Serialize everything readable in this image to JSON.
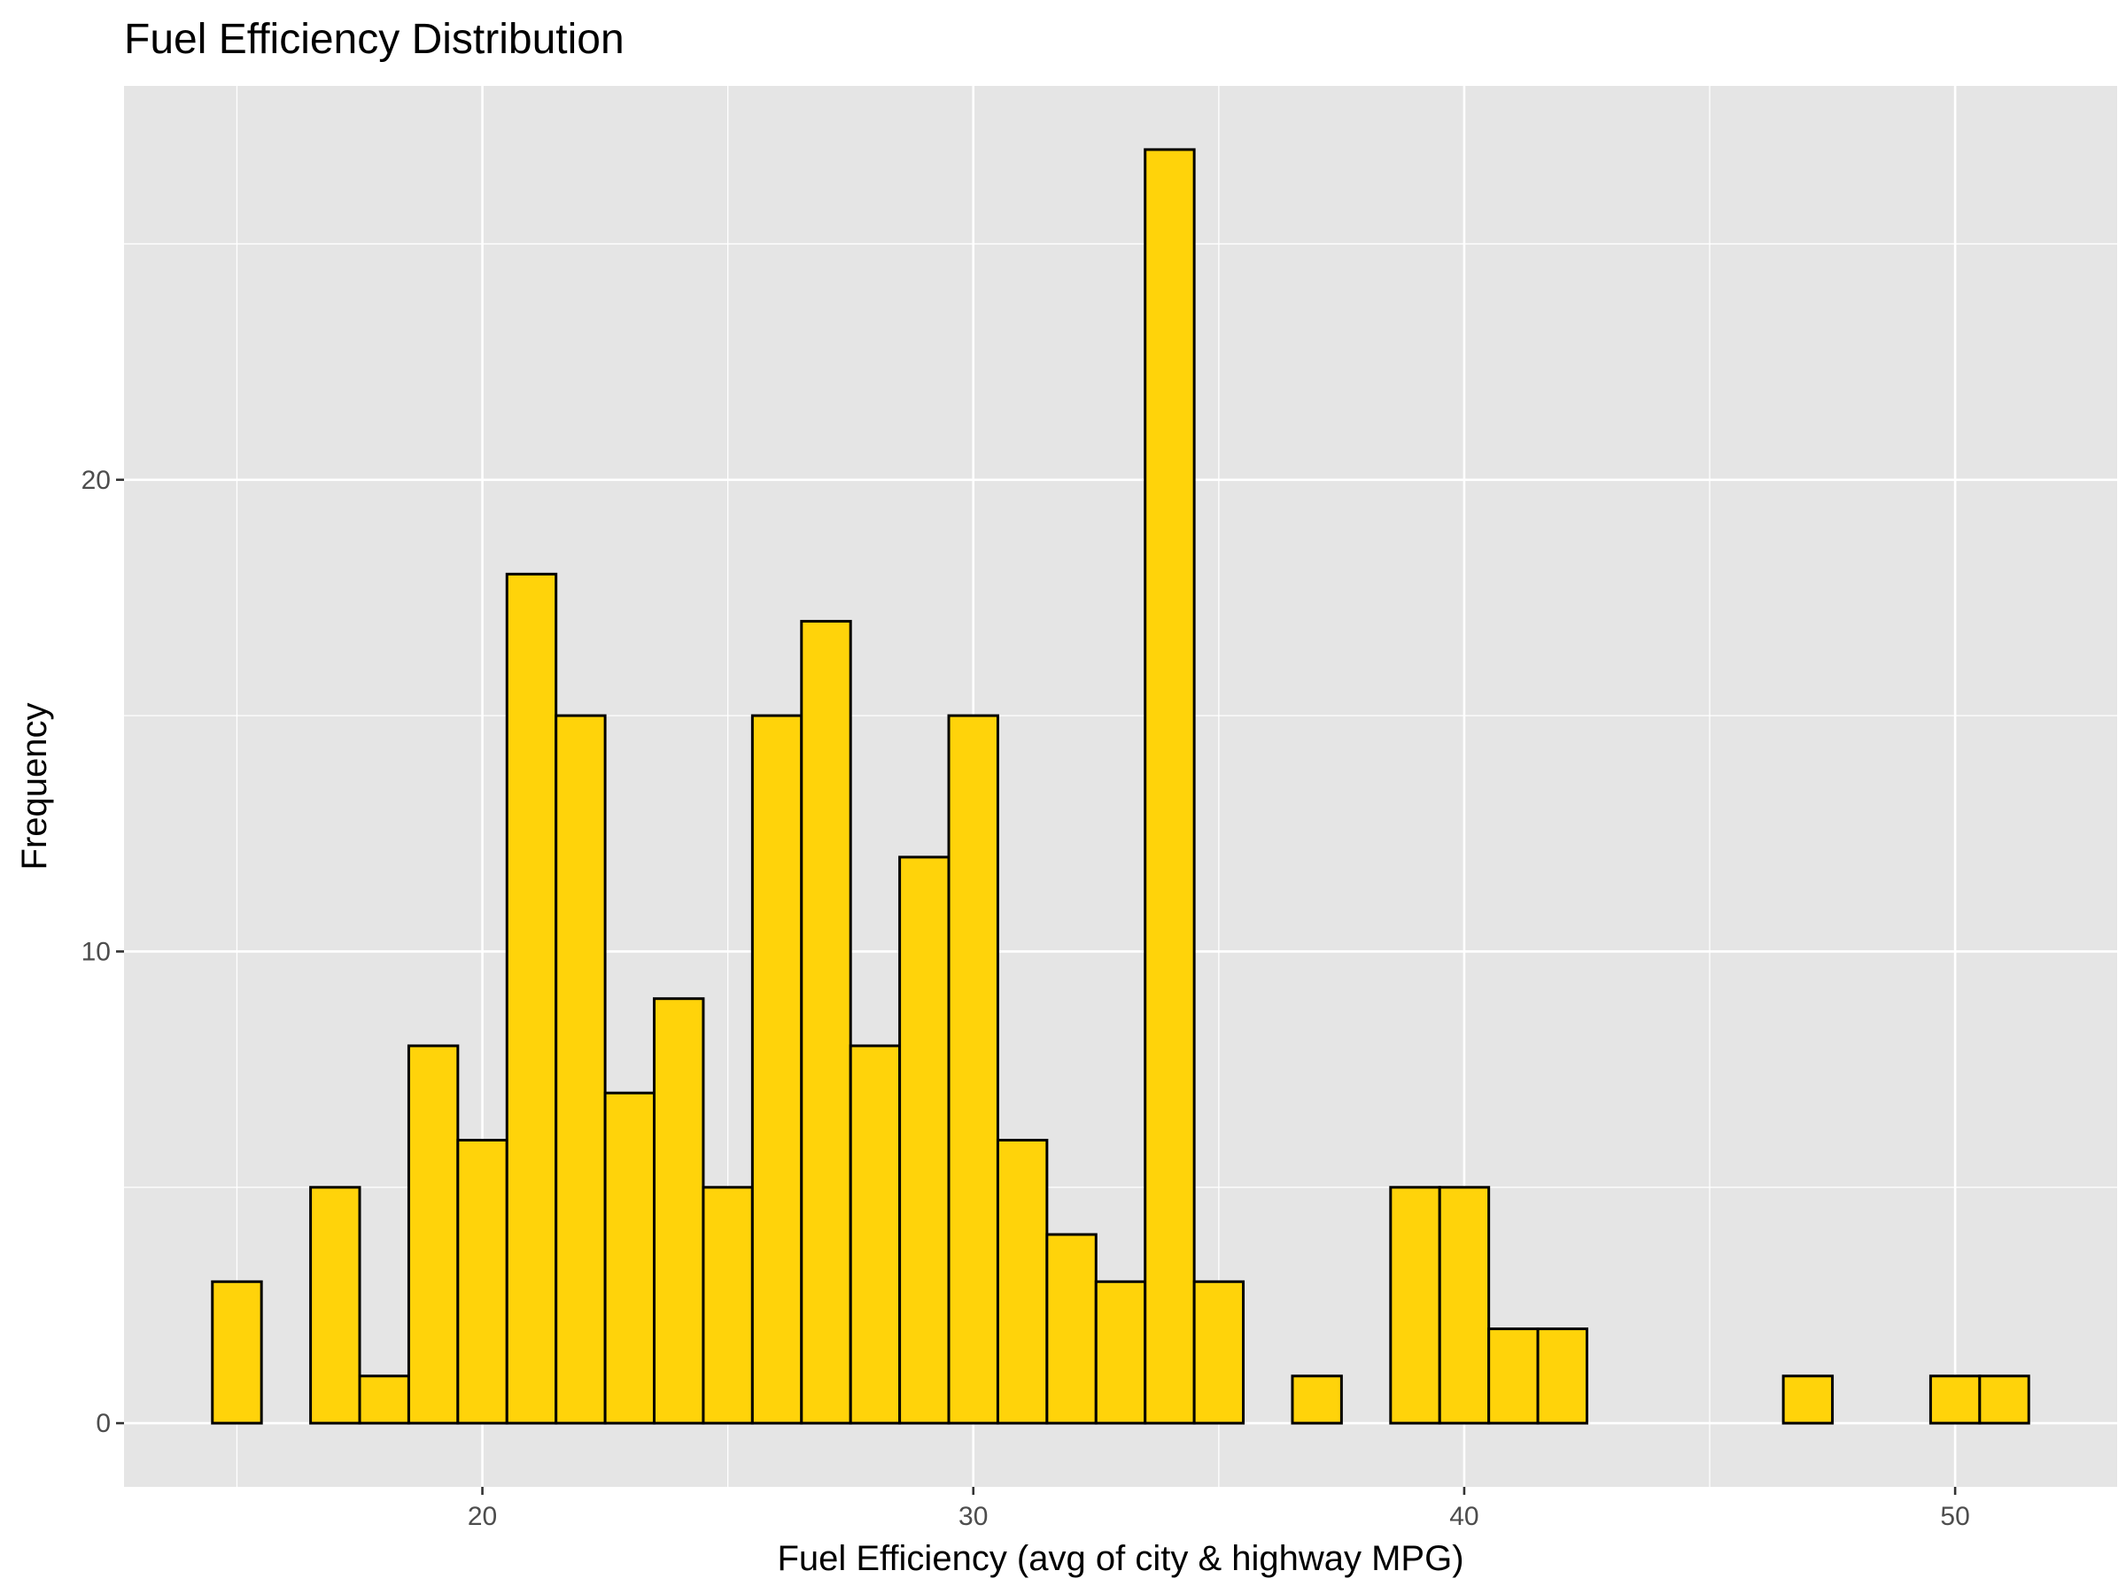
{
  "chart_data": {
    "type": "bar",
    "title": "Fuel Efficiency Distribution",
    "xlabel": "Fuel Efficiency (avg of city & highway MPG)",
    "ylabel": "Frequency",
    "bin_width": 1,
    "bins": [
      {
        "x": 15,
        "count": 3
      },
      {
        "x": 16,
        "count": 0
      },
      {
        "x": 17,
        "count": 5
      },
      {
        "x": 18,
        "count": 1
      },
      {
        "x": 19,
        "count": 8
      },
      {
        "x": 20,
        "count": 6
      },
      {
        "x": 21,
        "count": 18
      },
      {
        "x": 22,
        "count": 15
      },
      {
        "x": 23,
        "count": 7
      },
      {
        "x": 24,
        "count": 9
      },
      {
        "x": 25,
        "count": 5
      },
      {
        "x": 26,
        "count": 15
      },
      {
        "x": 27,
        "count": 17
      },
      {
        "x": 28,
        "count": 8
      },
      {
        "x": 29,
        "count": 12
      },
      {
        "x": 30,
        "count": 15
      },
      {
        "x": 31,
        "count": 6
      },
      {
        "x": 32,
        "count": 4
      },
      {
        "x": 33,
        "count": 3
      },
      {
        "x": 34,
        "count": 27
      },
      {
        "x": 35,
        "count": 3
      },
      {
        "x": 36,
        "count": 0
      },
      {
        "x": 37,
        "count": 1
      },
      {
        "x": 38,
        "count": 0
      },
      {
        "x": 39,
        "count": 5
      },
      {
        "x": 40,
        "count": 5
      },
      {
        "x": 41,
        "count": 2
      },
      {
        "x": 42,
        "count": 2
      },
      {
        "x": 43,
        "count": 0
      },
      {
        "x": 44,
        "count": 0
      },
      {
        "x": 45,
        "count": 0
      },
      {
        "x": 46,
        "count": 0
      },
      {
        "x": 47,
        "count": 1
      },
      {
        "x": 48,
        "count": 0
      },
      {
        "x": 49,
        "count": 0
      },
      {
        "x": 50,
        "count": 1
      },
      {
        "x": 51,
        "count": 1
      }
    ],
    "xlim": [
      12.7,
      53.3
    ],
    "ylim": [
      -1.35,
      28.35
    ],
    "xticks": [
      20,
      30,
      40,
      50
    ],
    "xtick_labels": [
      "20",
      "30",
      "40",
      "50"
    ],
    "yticks": [
      0,
      10,
      20
    ],
    "ytick_labels": [
      "0",
      "10",
      "20"
    ],
    "grid": true,
    "colors": {
      "bar_fill": "#FFD30A",
      "bar_outline": "#000000",
      "panel_background": "#E5E5E5",
      "grid": "#FFFFFF"
    }
  }
}
